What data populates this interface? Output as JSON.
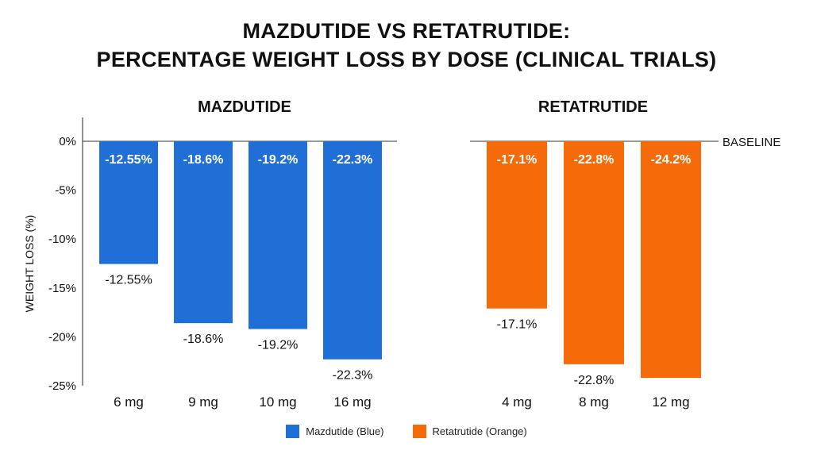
{
  "title_line1": "MAZDUTIDE VS RETATRUTIDE:",
  "title_line2": "PERCENTAGE WEIGHT LOSS BY DOSE (CLINICAL TRIALS)",
  "colors": {
    "mazdutide": "#1f6fd6",
    "retatrutide": "#f56a09"
  },
  "chart_data": [
    {
      "type": "bar",
      "title": "MAZDUTIDE",
      "ylabel": "WEIGHT LOSS (%)",
      "ylim": [
        -25,
        0
      ],
      "yticks": [
        "0%",
        "-5%",
        "-10%",
        "-15%",
        "-20%",
        "-25%"
      ],
      "categories": [
        "6 mg",
        "9 mg",
        "10 mg",
        "16 mg"
      ],
      "values": [
        -12.55,
        -18.6,
        -19.2,
        -22.3
      ],
      "value_labels": [
        "-12.55%",
        "-18.6%",
        "-19.2%",
        "-22.3%"
      ],
      "color": "#1f6fd6"
    },
    {
      "type": "bar",
      "title": "RETATRUTIDE",
      "ylim": [
        -25,
        0
      ],
      "categories": [
        "4 mg",
        "8 mg",
        "12 mg"
      ],
      "values": [
        -17.1,
        -22.8,
        -24.2
      ],
      "value_labels": [
        "-17.1%",
        "-22.8%",
        "-24.2%"
      ],
      "outer_labels": [
        "-17.1%",
        "-22.8%"
      ],
      "baseline_label": "BASELINE",
      "color": "#f56a09"
    }
  ],
  "legend": [
    {
      "label": "Mazdutide (Blue)",
      "color": "#1f6fd6"
    },
    {
      "label": "Retatrutide (Orange)",
      "color": "#f56a09"
    }
  ]
}
